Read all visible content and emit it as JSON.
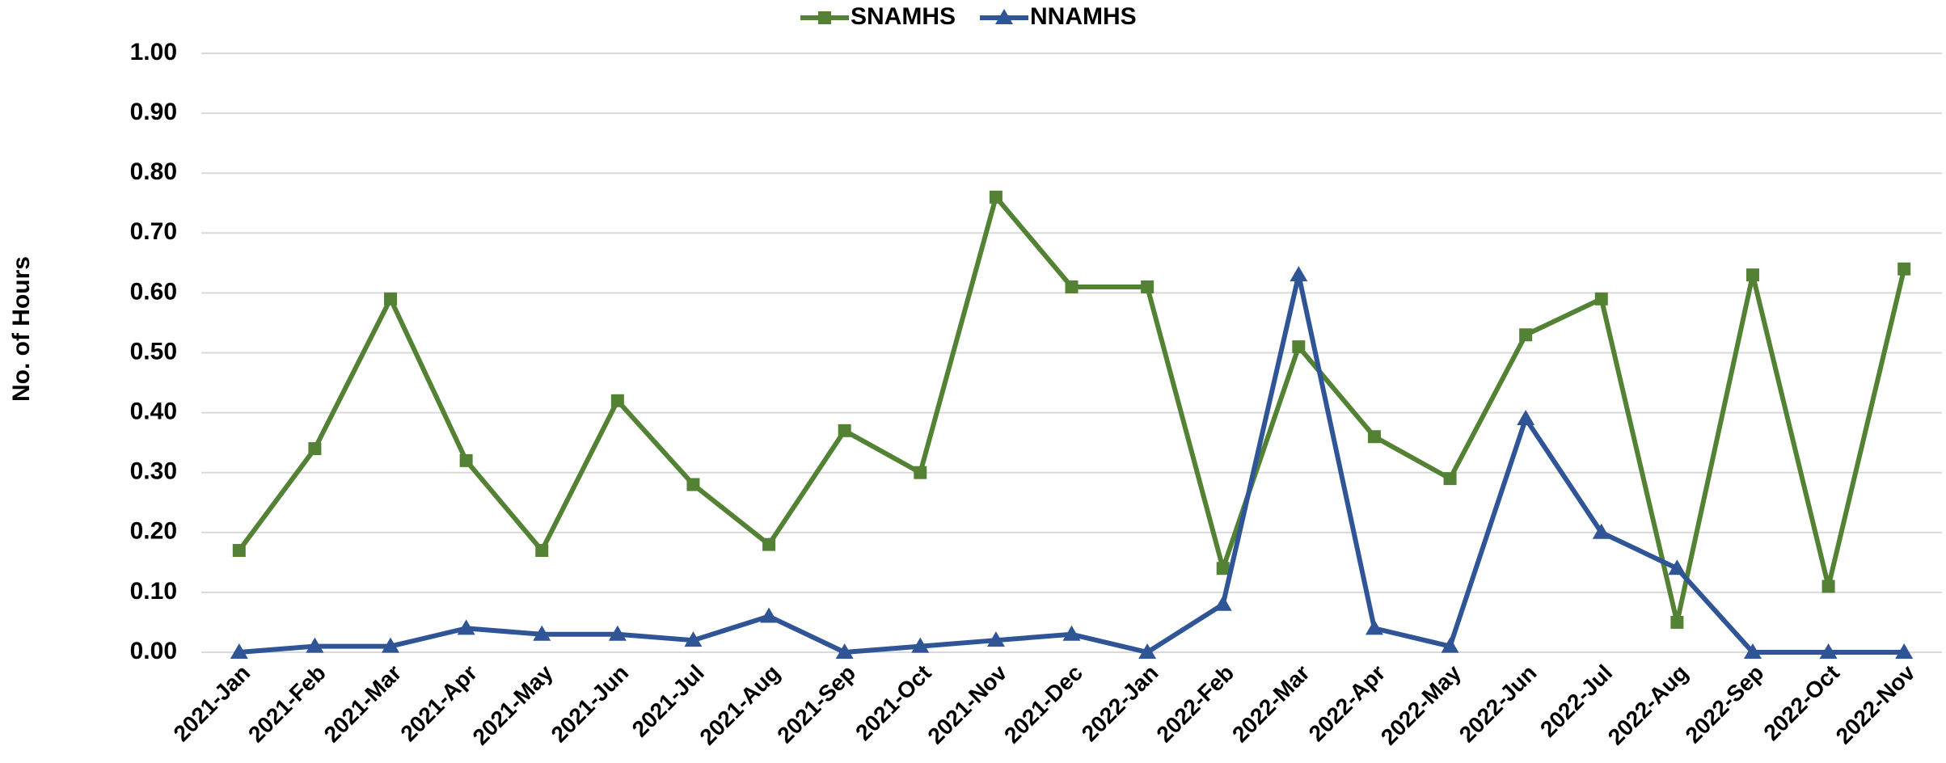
{
  "chart_data": {
    "type": "line",
    "y_label": "No. of Hours",
    "categories": [
      "2021-Jan",
      "2021-Feb",
      "2021-Mar",
      "2021-Apr",
      "2021-May",
      "2021-Jun",
      "2021-Jul",
      "2021-Aug",
      "2021-Sep",
      "2021-Oct",
      "2021-Nov",
      "2021-Dec",
      "2022-Jan",
      "2022-Feb",
      "2022-Mar",
      "2022-Apr",
      "2022-May",
      "2022-Jun",
      "2022-Jul",
      "2022-Aug",
      "2022-Sep",
      "2022-Oct",
      "2022-Nov"
    ],
    "series": [
      {
        "name": "SNAMHS",
        "color": "#548235",
        "marker": "square",
        "values": [
          0.17,
          0.34,
          0.59,
          0.32,
          0.17,
          0.42,
          0.28,
          0.18,
          0.37,
          0.3,
          0.76,
          0.61,
          0.61,
          0.14,
          0.51,
          0.36,
          0.29,
          0.53,
          0.59,
          0.05,
          0.63,
          0.11,
          0.64
        ]
      },
      {
        "name": "NNAMHS",
        "color": "#2f5597",
        "marker": "triangle",
        "values": [
          0,
          0.01,
          0.01,
          0.04,
          0.03,
          0.03,
          0.02,
          0.06,
          0,
          0.01,
          0.02,
          0.03,
          0,
          0.08,
          0.63,
          0.04,
          0.01,
          0.39,
          0.2,
          0.14,
          0,
          0,
          0
        ]
      }
    ],
    "ylim": [
      0,
      1
    ],
    "yticks": [
      {
        "value": 0,
        "label": "0.00"
      },
      {
        "value": 0.1,
        "label": "0.10"
      },
      {
        "value": 0.2,
        "label": "0.20"
      },
      {
        "value": 0.3,
        "label": "0.30"
      },
      {
        "value": 0.4,
        "label": "0.40"
      },
      {
        "value": 0.5,
        "label": "0.50"
      },
      {
        "value": 0.6,
        "label": "0.60"
      },
      {
        "value": 0.7,
        "label": "0.70"
      },
      {
        "value": 0.8,
        "label": "0.80"
      },
      {
        "value": 0.9,
        "label": "0.90"
      },
      {
        "value": 1,
        "label": "1.00"
      }
    ],
    "grid": true,
    "legend": "top"
  }
}
